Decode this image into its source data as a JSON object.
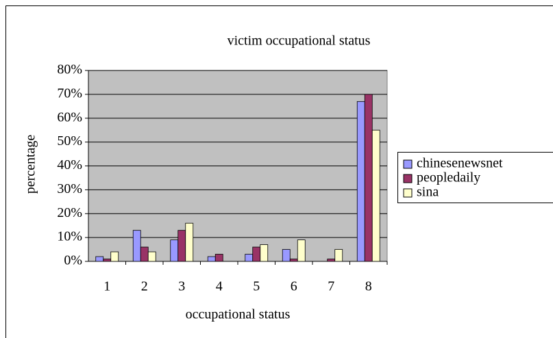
{
  "chart_data": {
    "type": "bar",
    "title": "victim occupational status",
    "x_label": "occupational status",
    "y_label": "percentage",
    "categories": [
      "1",
      "2",
      "3",
      "4",
      "5",
      "6",
      "7",
      "8"
    ],
    "series": [
      {
        "name": "chinesenewsnet",
        "color": "#9999ff",
        "values": [
          2,
          13,
          9,
          2,
          3,
          5,
          0,
          67
        ]
      },
      {
        "name": "peopledaily",
        "color": "#993366",
        "values": [
          1,
          6,
          13,
          3,
          6,
          1,
          1,
          70
        ]
      },
      {
        "name": "sina",
        "color": "#ffffcc",
        "values": [
          4,
          4,
          16,
          0,
          7,
          9,
          5,
          55
        ]
      }
    ],
    "ylim": [
      0,
      80
    ],
    "yticks": [
      {
        "value": 0,
        "label": "0%"
      },
      {
        "value": 10,
        "label": "10%"
      },
      {
        "value": 20,
        "label": "20%"
      },
      {
        "value": 30,
        "label": "30%"
      },
      {
        "value": 40,
        "label": "40%"
      },
      {
        "value": 50,
        "label": "50%"
      },
      {
        "value": 60,
        "label": "60%"
      },
      {
        "value": 70,
        "label": "70%"
      },
      {
        "value": 80,
        "label": "80%"
      }
    ],
    "grid": true,
    "plot_background": "#c0c0c0",
    "legend": "right"
  }
}
